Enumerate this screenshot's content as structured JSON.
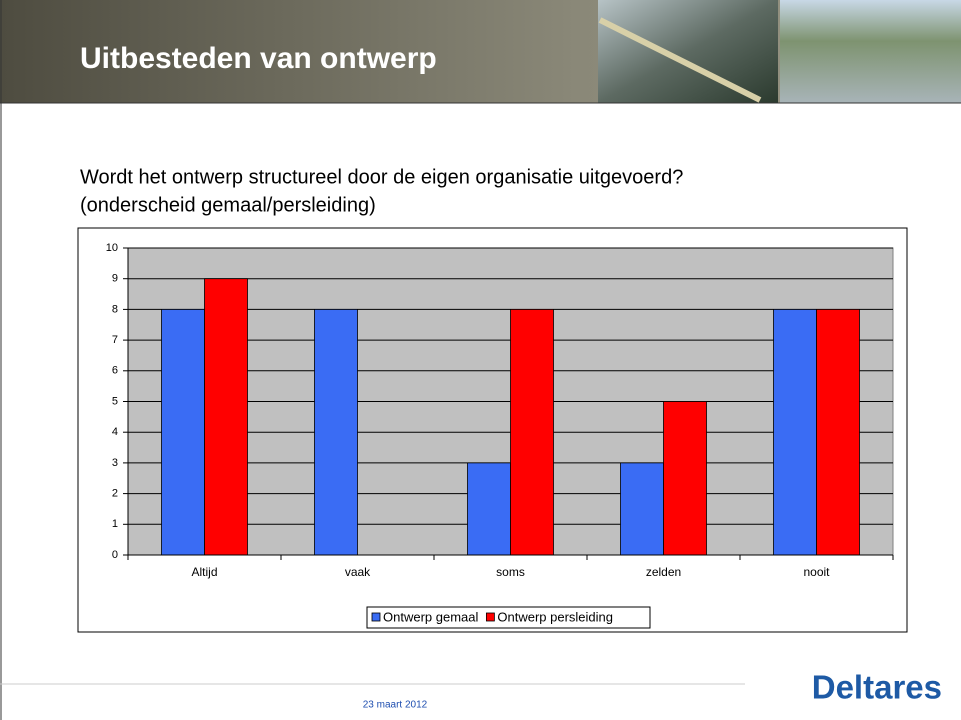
{
  "slide_title": "Uitbesteden van ontwerp",
  "question": [
    "Wordt het ontwerp structureel door de eigen organisatie uitgevoerd?",
    "(onderscheid gemaal/persleiding)"
  ],
  "footer": {
    "date": "23 maart 2012",
    "logo": "Deltares"
  },
  "chart_data": {
    "type": "bar",
    "categories": [
      "Altijd",
      "vaak",
      "soms",
      "zelden",
      "nooit"
    ],
    "series": [
      {
        "name": "Ontwerp gemaal",
        "color": "#3a6cf4",
        "values": [
          8,
          8,
          3,
          3,
          8
        ]
      },
      {
        "name": "Ontwerp persleiding",
        "color": "#ff0000",
        "values": [
          9,
          0,
          8,
          5,
          8
        ]
      }
    ],
    "ylim": [
      0,
      10
    ],
    "yticks": [
      0,
      1,
      2,
      3,
      4,
      5,
      6,
      7,
      8,
      9,
      10
    ],
    "grid": true,
    "legend": "bottom"
  }
}
